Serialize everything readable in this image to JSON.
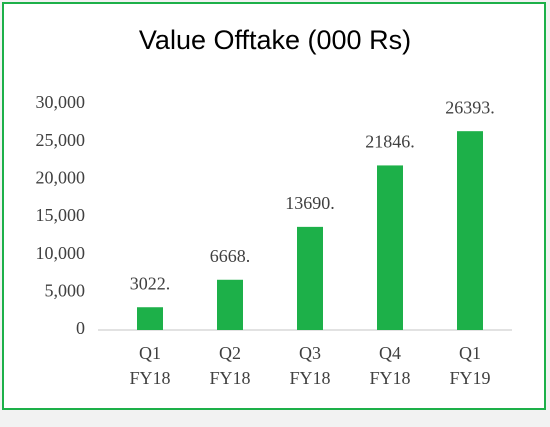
{
  "chart_data": {
    "type": "bar",
    "title": "Value Offtake (000 Rs)",
    "categories": [
      "Q1 FY18",
      "Q2 FY18",
      "Q3 FY18",
      "Q4 FY18",
      "Q1 FY19"
    ],
    "values": [
      3022,
      6668,
      13690,
      21846,
      26393
    ],
    "value_labels": [
      "3022.",
      "6668.",
      "13690.",
      "21846.",
      "26393."
    ],
    "color": "#1db049",
    "ylim": [
      0,
      30000
    ],
    "yticks": [
      0,
      {
        "value": 5000,
        "label": "5,000"
      },
      {
        "value": 10000,
        "label": "10,000"
      },
      {
        "value": 15000,
        "label": "15,000"
      },
      {
        "value": 20000,
        "label": "20,000"
      },
      {
        "value": 25000,
        "label": "25,000"
      },
      {
        "value": 30000,
        "label": "30,000"
      }
    ],
    "grid": false
  }
}
